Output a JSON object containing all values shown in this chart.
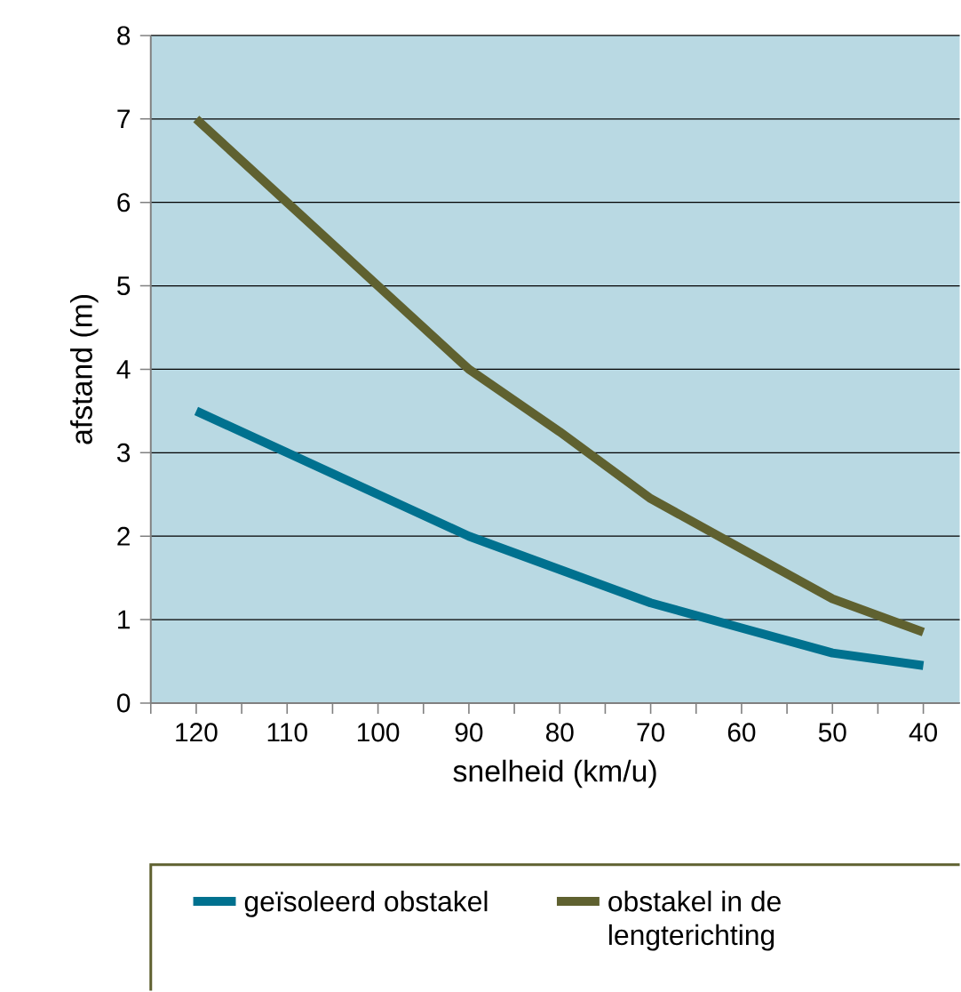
{
  "chart_data": {
    "type": "line",
    "xlabel": "snelheid (km/u)",
    "ylabel": "afstand (m)",
    "categories": [
      "120",
      "110",
      "100",
      "90",
      "80",
      "70",
      "60",
      "50",
      "40"
    ],
    "series": [
      {
        "name": "geïsoleerd obstakel",
        "color": "#00718f",
        "values": [
          3.5,
          3.0,
          2.5,
          2.0,
          1.6,
          1.2,
          0.9,
          0.6,
          0.45
        ]
      },
      {
        "name": "obstakel in de lengterichting",
        "color": "#5f6130",
        "values": [
          7.0,
          6.0,
          5.0,
          4.0,
          3.25,
          2.45,
          1.85,
          1.25,
          0.85
        ]
      }
    ],
    "ylim": [
      0,
      8
    ],
    "yticks": [
      0,
      1,
      2,
      3,
      4,
      5,
      6,
      7,
      8
    ],
    "grid": "y",
    "legend": "bottom",
    "marker": "none",
    "line_style": "solid"
  }
}
